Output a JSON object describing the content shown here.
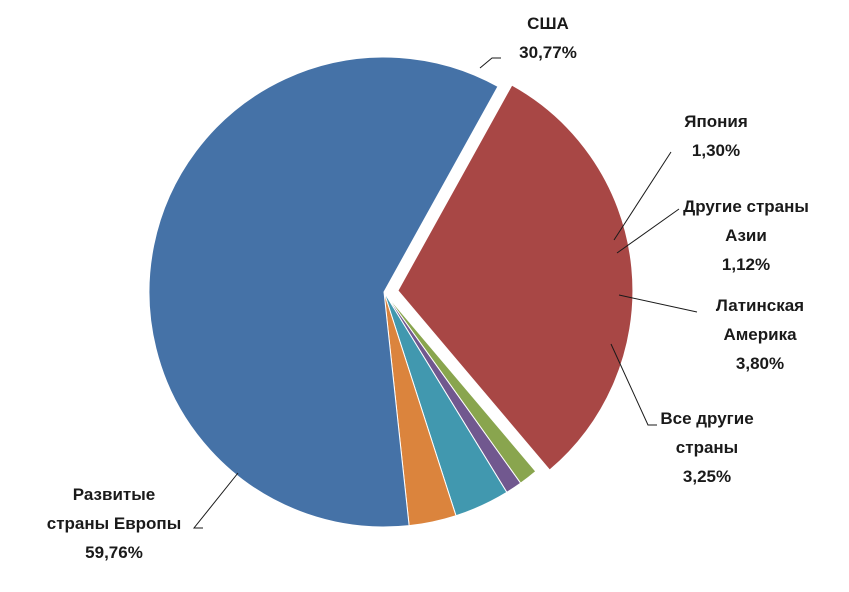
{
  "chart_data": {
    "type": "pie",
    "title": "",
    "slices": [
      {
        "lines": [
          "США",
          "30,77%"
        ],
        "label": "США",
        "percent_label": "30,77%",
        "value": 30.77,
        "color": "#A84745",
        "exploded": true
      },
      {
        "lines": [
          "Япония",
          "1,30%"
        ],
        "label": "Япония",
        "percent_label": "1,30%",
        "value": 1.3,
        "color": "#89A54E",
        "exploded": false
      },
      {
        "lines": [
          "Другие страны",
          "Азии",
          "1,12%"
        ],
        "label": "Другие страны Азии",
        "percent_label": "1,12%",
        "value": 1.12,
        "color": "#71588F",
        "exploded": false
      },
      {
        "lines": [
          "Латинская",
          "Америка",
          "3,80%"
        ],
        "label": "Латинская Америка",
        "percent_label": "3,80%",
        "value": 3.8,
        "color": "#4198AF",
        "exploded": false
      },
      {
        "lines": [
          "Все другие",
          "страны",
          "3,25%"
        ],
        "label": "Все другие страны",
        "percent_label": "3,25%",
        "value": 3.25,
        "color": "#DB843D",
        "exploded": false
      },
      {
        "lines": [
          "Развитые",
          "страны Европы",
          "59,76%"
        ],
        "label": "Развитые страны Европы",
        "percent_label": "59,76%",
        "value": 59.76,
        "color": "#4572A7",
        "exploded": false
      }
    ]
  }
}
